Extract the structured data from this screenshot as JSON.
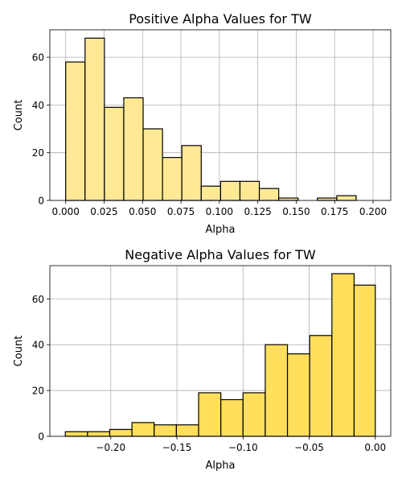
{
  "chart_data": [
    {
      "type": "bar",
      "title": "Positive Alpha Values for TW",
      "xlabel": "Alpha",
      "ylabel": "Count",
      "bar_color": "#ffe994",
      "edge_color": "#000000",
      "grid": true,
      "xlim": [
        -0.0103,
        0.2115
      ],
      "ylim": [
        0,
        71.5
      ],
      "xticks": [
        0.0,
        0.025,
        0.05,
        0.075,
        0.1,
        0.125,
        0.15,
        0.175,
        0.2
      ],
      "xtick_labels": [
        "0.000",
        "0.025",
        "0.050",
        "0.075",
        "0.100",
        "0.125",
        "0.150",
        "0.175",
        "0.200"
      ],
      "yticks": [
        0,
        20,
        40,
        60
      ],
      "ytick_labels": [
        "0",
        "20",
        "40",
        "60"
      ],
      "bins": [
        {
          "x0": 0.0,
          "x1": 0.0126,
          "count": 58
        },
        {
          "x0": 0.0126,
          "x1": 0.0252,
          "count": 68
        },
        {
          "x0": 0.0252,
          "x1": 0.0378,
          "count": 39
        },
        {
          "x0": 0.0378,
          "x1": 0.0504,
          "count": 43
        },
        {
          "x0": 0.0504,
          "x1": 0.063,
          "count": 30
        },
        {
          "x0": 0.063,
          "x1": 0.0756,
          "count": 18
        },
        {
          "x0": 0.0756,
          "x1": 0.0882,
          "count": 23
        },
        {
          "x0": 0.0882,
          "x1": 0.1008,
          "count": 6
        },
        {
          "x0": 0.1008,
          "x1": 0.1134,
          "count": 8
        },
        {
          "x0": 0.1134,
          "x1": 0.126,
          "count": 8
        },
        {
          "x0": 0.126,
          "x1": 0.1386,
          "count": 5
        },
        {
          "x0": 0.1386,
          "x1": 0.1512,
          "count": 1
        },
        {
          "x0": 0.1512,
          "x1": 0.1638,
          "count": 0
        },
        {
          "x0": 0.1638,
          "x1": 0.1764,
          "count": 1
        },
        {
          "x0": 0.1764,
          "x1": 0.189,
          "count": 2
        }
      ]
    },
    {
      "type": "bar",
      "title": "Negative Alpha Values for TW",
      "xlabel": "Alpha",
      "ylabel": "Count",
      "bar_color": "#ffdf5b",
      "edge_color": "#000000",
      "grid": true,
      "xlim": [
        -0.2461,
        0.0117
      ],
      "ylim": [
        0,
        74.5
      ],
      "xticks": [
        -0.2,
        -0.15,
        -0.1,
        -0.05,
        0.0
      ],
      "xtick_labels": [
        "−0.20",
        "−0.15",
        "−0.10",
        "−0.05",
        "0.00"
      ],
      "yticks": [
        0,
        20,
        40,
        60
      ],
      "ytick_labels": [
        "0",
        "20",
        "40",
        "60"
      ],
      "bins": [
        {
          "x0": -0.2344,
          "x1": -0.2176,
          "count": 2
        },
        {
          "x0": -0.2176,
          "x1": -0.2008,
          "count": 2
        },
        {
          "x0": -0.2008,
          "x1": -0.184,
          "count": 3
        },
        {
          "x0": -0.184,
          "x1": -0.1672,
          "count": 6
        },
        {
          "x0": -0.1672,
          "x1": -0.1504,
          "count": 5
        },
        {
          "x0": -0.1504,
          "x1": -0.1336,
          "count": 5
        },
        {
          "x0": -0.1336,
          "x1": -0.1168,
          "count": 19
        },
        {
          "x0": -0.1168,
          "x1": -0.1,
          "count": 16
        },
        {
          "x0": -0.1,
          "x1": -0.0832,
          "count": 19
        },
        {
          "x0": -0.0832,
          "x1": -0.0664,
          "count": 40
        },
        {
          "x0": -0.0664,
          "x1": -0.0496,
          "count": 36
        },
        {
          "x0": -0.0496,
          "x1": -0.0328,
          "count": 44
        },
        {
          "x0": -0.0328,
          "x1": -0.016,
          "count": 71
        },
        {
          "x0": -0.016,
          "x1": 0.0,
          "count": 66
        }
      ]
    }
  ]
}
